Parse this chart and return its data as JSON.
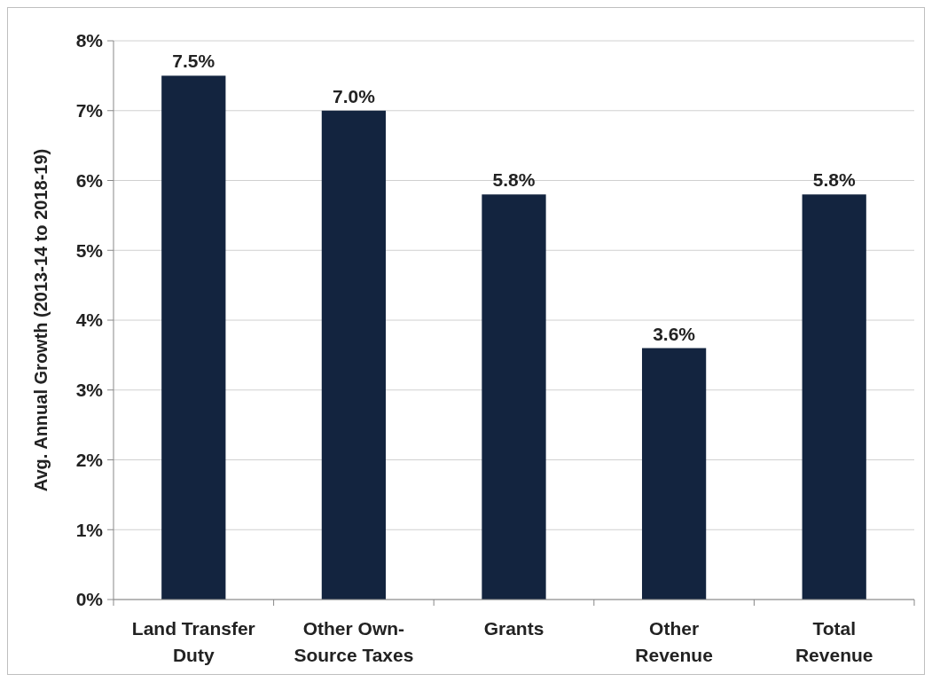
{
  "chart_data": {
    "type": "bar",
    "ylabel": "Avg. Annual Growth (2013-14 to 2018-19)",
    "categories": [
      "Land Transfer Duty",
      "Other Own-Source Taxes",
      "Grants",
      "Other Revenue",
      "Total Revenue"
    ],
    "values": [
      7.5,
      7.0,
      5.8,
      3.6,
      5.8
    ],
    "value_labels": [
      "7.5%",
      "7.0%",
      "5.8%",
      "3.6%",
      "5.8%"
    ],
    "color": "#13243f",
    "ylim": [
      0,
      8
    ],
    "yticks": [
      {
        "value": 0,
        "label": "0%"
      },
      {
        "value": 1,
        "label": "1%"
      },
      {
        "value": 2,
        "label": "2%"
      },
      {
        "value": 3,
        "label": "3%"
      },
      {
        "value": 4,
        "label": "4%"
      },
      {
        "value": 5,
        "label": "5%"
      },
      {
        "value": 6,
        "label": "6%"
      },
      {
        "value": 7,
        "label": "7%"
      },
      {
        "value": 8,
        "label": "8%"
      }
    ],
    "grid": "y"
  }
}
